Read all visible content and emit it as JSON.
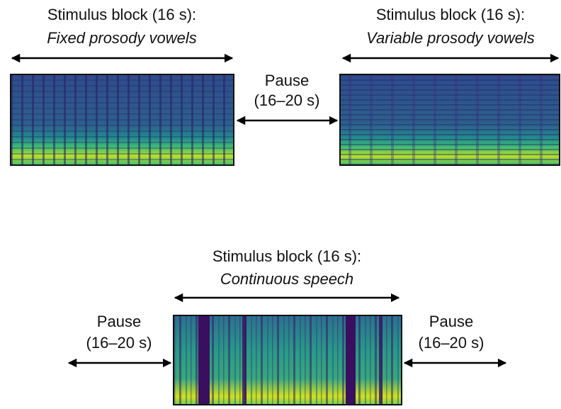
{
  "blocks": [
    {
      "title": "Stimulus block (16 s):",
      "subtitle": "Fixed prosody vowels"
    },
    {
      "title": "Stimulus block (16 s):",
      "subtitle": "Variable prosody vowels"
    },
    {
      "title": "Stimulus block (16 s):",
      "subtitle": "Continuous speech"
    }
  ],
  "pauses": [
    {
      "label": "Pause",
      "duration": "(16–20 s)"
    },
    {
      "label": "Pause",
      "duration": "(16–20 s)"
    },
    {
      "label": "Pause",
      "duration": "(16–20 s)"
    }
  ]
}
